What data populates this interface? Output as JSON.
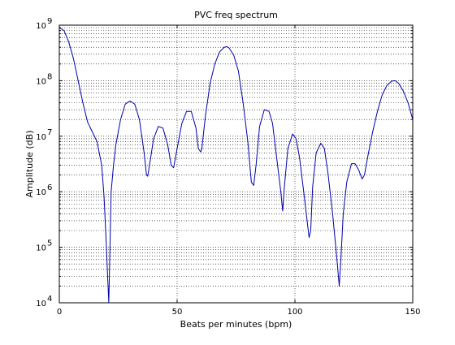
{
  "chart_data": {
    "type": "line",
    "title": "PVC freq spectrum",
    "xlabel": "Beats per minutes (bpm)",
    "ylabel": "Amplitude (dB)",
    "xlim": [
      0,
      150
    ],
    "ylim": [
      10000,
      1000000000
    ],
    "yscale": "log",
    "x_ticks": [
      0,
      50,
      100,
      150
    ],
    "x_tick_labels": [
      "0",
      "50",
      "100",
      "150"
    ],
    "y_ticks": [
      10000,
      100000,
      1000000,
      10000000,
      100000000,
      1000000000
    ],
    "y_tick_labels": [
      {
        "base": "10",
        "exp": "4"
      },
      {
        "base": "10",
        "exp": "5"
      },
      {
        "base": "10",
        "exp": "6"
      },
      {
        "base": "10",
        "exp": "7"
      },
      {
        "base": "10",
        "exp": "8"
      },
      {
        "base": "10",
        "exp": "9"
      }
    ],
    "grid": true,
    "line_color": "#0000aa",
    "series": [
      {
        "x": [
          0,
          2,
          4,
          6,
          8,
          10,
          12,
          14,
          16,
          18,
          19,
          20,
          20.5,
          21,
          21.5,
          22,
          23,
          24,
          26,
          28,
          30,
          32,
          34,
          36,
          37,
          37.5,
          38,
          40,
          42,
          44,
          46,
          47.5,
          48.5,
          50,
          52,
          54,
          56,
          58,
          59,
          60,
          60.5,
          62,
          64,
          66,
          68,
          70,
          71,
          72,
          74,
          76,
          78,
          80,
          81.5,
          82.5,
          83.5,
          85,
          87,
          89,
          90.5,
          92,
          94,
          94.8,
          95.5,
          97,
          99,
          100.5,
          102,
          104,
          106,
          106.7,
          107.5,
          109,
          111,
          112.5,
          114,
          116,
          118,
          118.8,
          119.5,
          120.5,
          122,
          124,
          125.5,
          127,
          128.5,
          129.5,
          131,
          133,
          135,
          137,
          139,
          141,
          142.5,
          144,
          146,
          148,
          150
        ],
        "y": [
          900000000,
          800000000,
          500000000,
          250000000,
          100000000,
          40000000,
          18000000,
          12000000,
          8000000,
          3000000,
          800000,
          100000,
          30000,
          10000,
          100000,
          1000000,
          3000000,
          7000000,
          20000000,
          38000000,
          43000000,
          38000000,
          20000000,
          5000000,
          2000000,
          1900000,
          2500000,
          9000000,
          15000000,
          14000000,
          7000000,
          3000000,
          2700000,
          6000000,
          17000000,
          28000000,
          28000000,
          14000000,
          6000000,
          5200000,
          6000000,
          23000000,
          90000000,
          200000000,
          330000000,
          400000000,
          410000000,
          390000000,
          290000000,
          150000000,
          40000000,
          8000000,
          1500000,
          1300000,
          3000000,
          15000000,
          30000000,
          28000000,
          17000000,
          5000000,
          1000000,
          450000,
          1200000,
          6000000,
          11000000,
          9000000,
          4000000,
          800000,
          150000,
          200000,
          1200000,
          5000000,
          7500000,
          6000000,
          2200000,
          400000,
          50000,
          20000,
          60000,
          400000,
          1500000,
          3200000,
          3200000,
          2500000,
          1700000,
          2000000,
          4500000,
          12000000,
          28000000,
          55000000,
          82000000,
          98000000,
          100000000,
          90000000,
          65000000,
          40000000,
          20000000
        ]
      }
    ]
  }
}
